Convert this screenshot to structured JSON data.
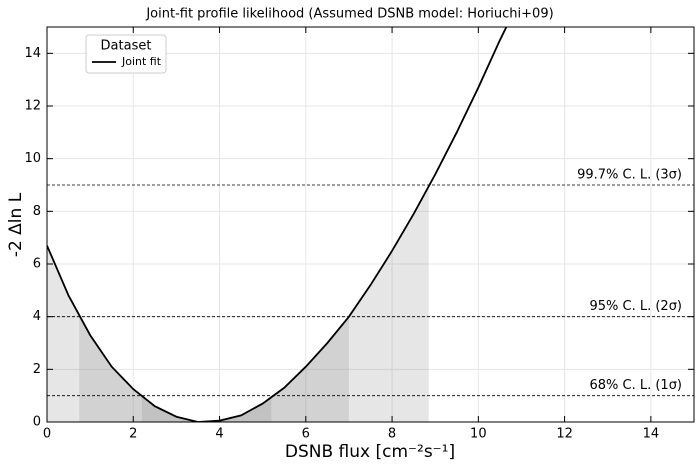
{
  "chart_data": {
    "type": "line",
    "title": "Joint-fit profile likelihood (Assumed DSNB model: Horiuchi+09)",
    "x_label": "DSNB flux [cm⁻²s⁻¹]",
    "y_label": "-2 Δln L",
    "xlim": [
      0,
      15
    ],
    "ylim": [
      0,
      15
    ],
    "xticks": [
      0,
      2,
      4,
      6,
      8,
      10,
      12,
      14
    ],
    "yticks": [
      0,
      2,
      4,
      6,
      8,
      10,
      12,
      14
    ],
    "grid": true,
    "legend_title": "Dataset",
    "legend_position": "upper left",
    "series": [
      {
        "name": "Joint fit",
        "color": "#000000",
        "x": [
          0,
          0.5,
          1,
          1.5,
          2,
          2.5,
          3,
          3.5,
          4,
          4.5,
          5,
          5.5,
          6,
          6.5,
          7,
          7.5,
          8,
          8.5,
          9,
          9.5,
          10,
          10.5,
          10.65
        ],
        "y": [
          6.7,
          4.8,
          3.3,
          2.1,
          1.25,
          0.6,
          0.2,
          0.0,
          0.05,
          0.25,
          0.7,
          1.3,
          2.1,
          3.0,
          4.0,
          5.2,
          6.5,
          7.9,
          9.4,
          11.0,
          12.7,
          14.5,
          15
        ]
      }
    ],
    "bands": [
      {
        "x": [
          0,
          8.85
        ]
      },
      {
        "x": [
          0.75,
          7.0
        ]
      },
      {
        "x": [
          2.2,
          5.2
        ]
      }
    ],
    "band_color": "#808080",
    "levels": [
      {
        "y": 1,
        "label": "68% C. L. (1σ)"
      },
      {
        "y": 4,
        "label": "95% C. L. (2σ)"
      },
      {
        "y": 9,
        "label": "99.7% C. L. (3σ)"
      }
    ]
  }
}
